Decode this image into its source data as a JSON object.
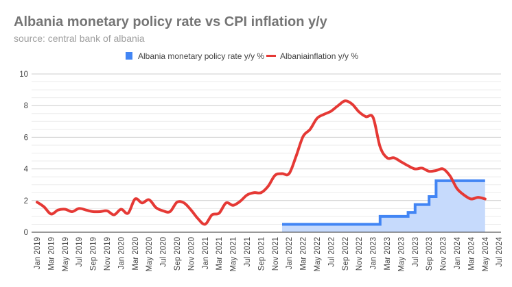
{
  "chart_data": {
    "type": "line",
    "title": "Albania monetary policy rate vs CPI inflation y/y",
    "subtitle": "source: central bank of albania",
    "xlabel": "",
    "ylabel": "",
    "ylim": [
      0,
      10
    ],
    "yticks": [
      "0",
      "2",
      "4",
      "6",
      "8",
      "10"
    ],
    "grid": true,
    "legend_position": "top",
    "xticks": [
      "Jan 2019",
      "Mar 2019",
      "May 2019",
      "Jul 2019",
      "Sep 2019",
      "Nov 2019",
      "Jan 2020",
      "Mar 2020",
      "May 2020",
      "Jul 2020",
      "Sep 2020",
      "Nov 2020",
      "Jan 2021",
      "Mar 2021",
      "May 2021",
      "Jul 2021",
      "Sep 2021",
      "Nov 2021",
      "Jan 2022",
      "Mar 2022",
      "May 2022",
      "Jul 2022",
      "Sep 2022",
      "Nov 2022",
      "Jan 2023",
      "Mar 2023",
      "May 2023",
      "Jul 2023",
      "Sep 2023",
      "Nov 2023",
      "Jan 2024",
      "Mar 2024",
      "May 2024",
      "Jul 2024"
    ],
    "series": [
      {
        "name": "Albania monetary policy rate y/y %",
        "type": "stepped-area",
        "color": "#4285f4",
        "fill": "#c6dafc",
        "start": "Dec 2021",
        "values": [
          0.5,
          0.5,
          0.5,
          0.5,
          0.5,
          0.5,
          0.5,
          0.5,
          0.5,
          0.5,
          0.5,
          0.5,
          0.5,
          0.5,
          1.0,
          1.0,
          1.0,
          1.0,
          1.25,
          1.75,
          1.75,
          2.25,
          3.25,
          3.25,
          3.25,
          3.25,
          3.25,
          3.25,
          3.25,
          3.25
        ]
      },
      {
        "name": "Albaniainflation y/y %",
        "type": "line",
        "color": "#e53935",
        "start": "Jan 2019",
        "values": [
          1.9,
          1.6,
          1.15,
          1.4,
          1.45,
          1.3,
          1.5,
          1.4,
          1.3,
          1.3,
          1.35,
          1.1,
          1.45,
          1.2,
          2.1,
          1.85,
          2.05,
          1.55,
          1.35,
          1.3,
          1.9,
          1.85,
          1.4,
          0.85,
          0.5,
          1.1,
          1.2,
          1.85,
          1.7,
          1.95,
          2.35,
          2.5,
          2.5,
          2.9,
          3.6,
          3.7,
          3.7,
          4.8,
          6.05,
          6.5,
          7.2,
          7.45,
          7.65,
          8.0,
          8.3,
          8.1,
          7.6,
          7.3,
          7.25,
          5.4,
          4.7,
          4.7,
          4.45,
          4.2,
          4.0,
          4.05,
          3.85,
          3.9,
          4.0,
          3.55,
          2.75,
          2.35,
          2.1,
          2.2,
          2.1
        ]
      }
    ]
  }
}
